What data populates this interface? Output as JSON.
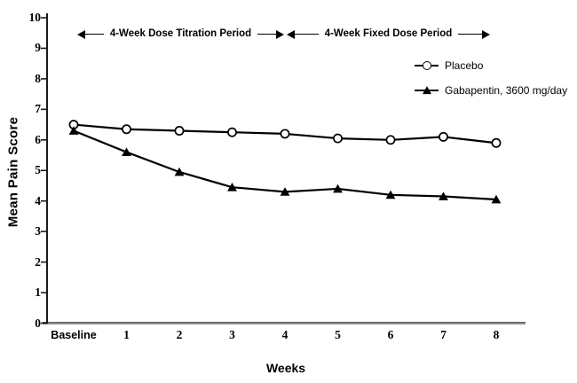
{
  "chart_data": {
    "type": "line",
    "title": "",
    "xlabel": "Weeks",
    "ylabel": "Mean Pain Score",
    "x_tick_labels": [
      "Baseline",
      "1",
      "2",
      "3",
      "4",
      "5",
      "6",
      "7",
      "8"
    ],
    "y_ticks": [
      0,
      1,
      2,
      3,
      4,
      5,
      6,
      7,
      8,
      9,
      10
    ],
    "ylim": [
      0,
      10
    ],
    "grid": false,
    "legend_position": "top-right",
    "series": [
      {
        "name": "Placebo",
        "marker": "open-circle",
        "values": [
          6.5,
          6.35,
          6.3,
          6.25,
          6.2,
          6.05,
          6.0,
          6.1,
          5.9
        ]
      },
      {
        "name": "Gabapentin, 3600 mg/day",
        "marker": "filled-triangle",
        "values": [
          6.3,
          5.6,
          4.95,
          4.45,
          4.3,
          4.4,
          4.2,
          4.15,
          4.05
        ]
      }
    ],
    "annotations": [
      {
        "label": "4-Week Dose Titration Period",
        "x_start": 0,
        "x_end": 4
      },
      {
        "label": "4-Week Fixed Dose Period",
        "x_start": 4,
        "x_end": 8
      }
    ]
  },
  "colors": {
    "series": "#000000",
    "axis": "#1a1a1a",
    "x_axis_line": "#909090",
    "x_axis_edge": "#5e5e5e",
    "background": "#ffffff"
  }
}
